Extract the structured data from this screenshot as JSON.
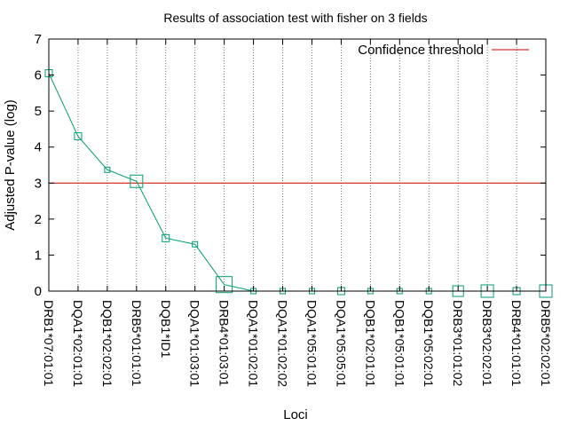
{
  "chart_data": {
    "type": "line",
    "title": "Results of association test with fisher on 3 fields",
    "xlabel": "Loci",
    "ylabel": "Adjusted P-value (log)",
    "ylim": [
      0,
      7
    ],
    "yticks": [
      0,
      1,
      2,
      3,
      4,
      5,
      6,
      7
    ],
    "grid": "vertical dotted lines at each category",
    "legend_position": "top-right",
    "categories": [
      "DRB1*07:01:01",
      "DQA1*02:01:01",
      "DQB1*02:02:01",
      "DRB5*01:01:01",
      "DQB1*ID1",
      "DQA1*01:03:01",
      "DRB4*01:03:01",
      "DQA1*01:02:01",
      "DQA1*01:02:02",
      "DQA1*05:01:01",
      "DQA1*05:05:01",
      "DQB1*02:01:01",
      "DQB1*05:01:01",
      "DQB1*05:02:01",
      "DRB3*01:01:02",
      "DRB3*02:02:01",
      "DRB4*01:01:01",
      "DRB5*02:02:01"
    ],
    "series": [
      {
        "values": [
          6.05,
          4.3,
          3.37,
          3.05,
          1.47,
          1.3,
          0.18,
          0.0,
          0.0,
          0.0,
          0.0,
          0.0,
          0.0,
          0.0,
          0.0,
          0.0,
          0.0,
          0.0
        ],
        "marker_weight": [
          2,
          2,
          1,
          5,
          2,
          1,
          7,
          1,
          1,
          1,
          2,
          1,
          1,
          1,
          4,
          5,
          2,
          5
        ],
        "color": "#009e73"
      }
    ],
    "threshold": {
      "name": "Confidence threshold",
      "value": 3,
      "color": "#cc0000"
    }
  }
}
